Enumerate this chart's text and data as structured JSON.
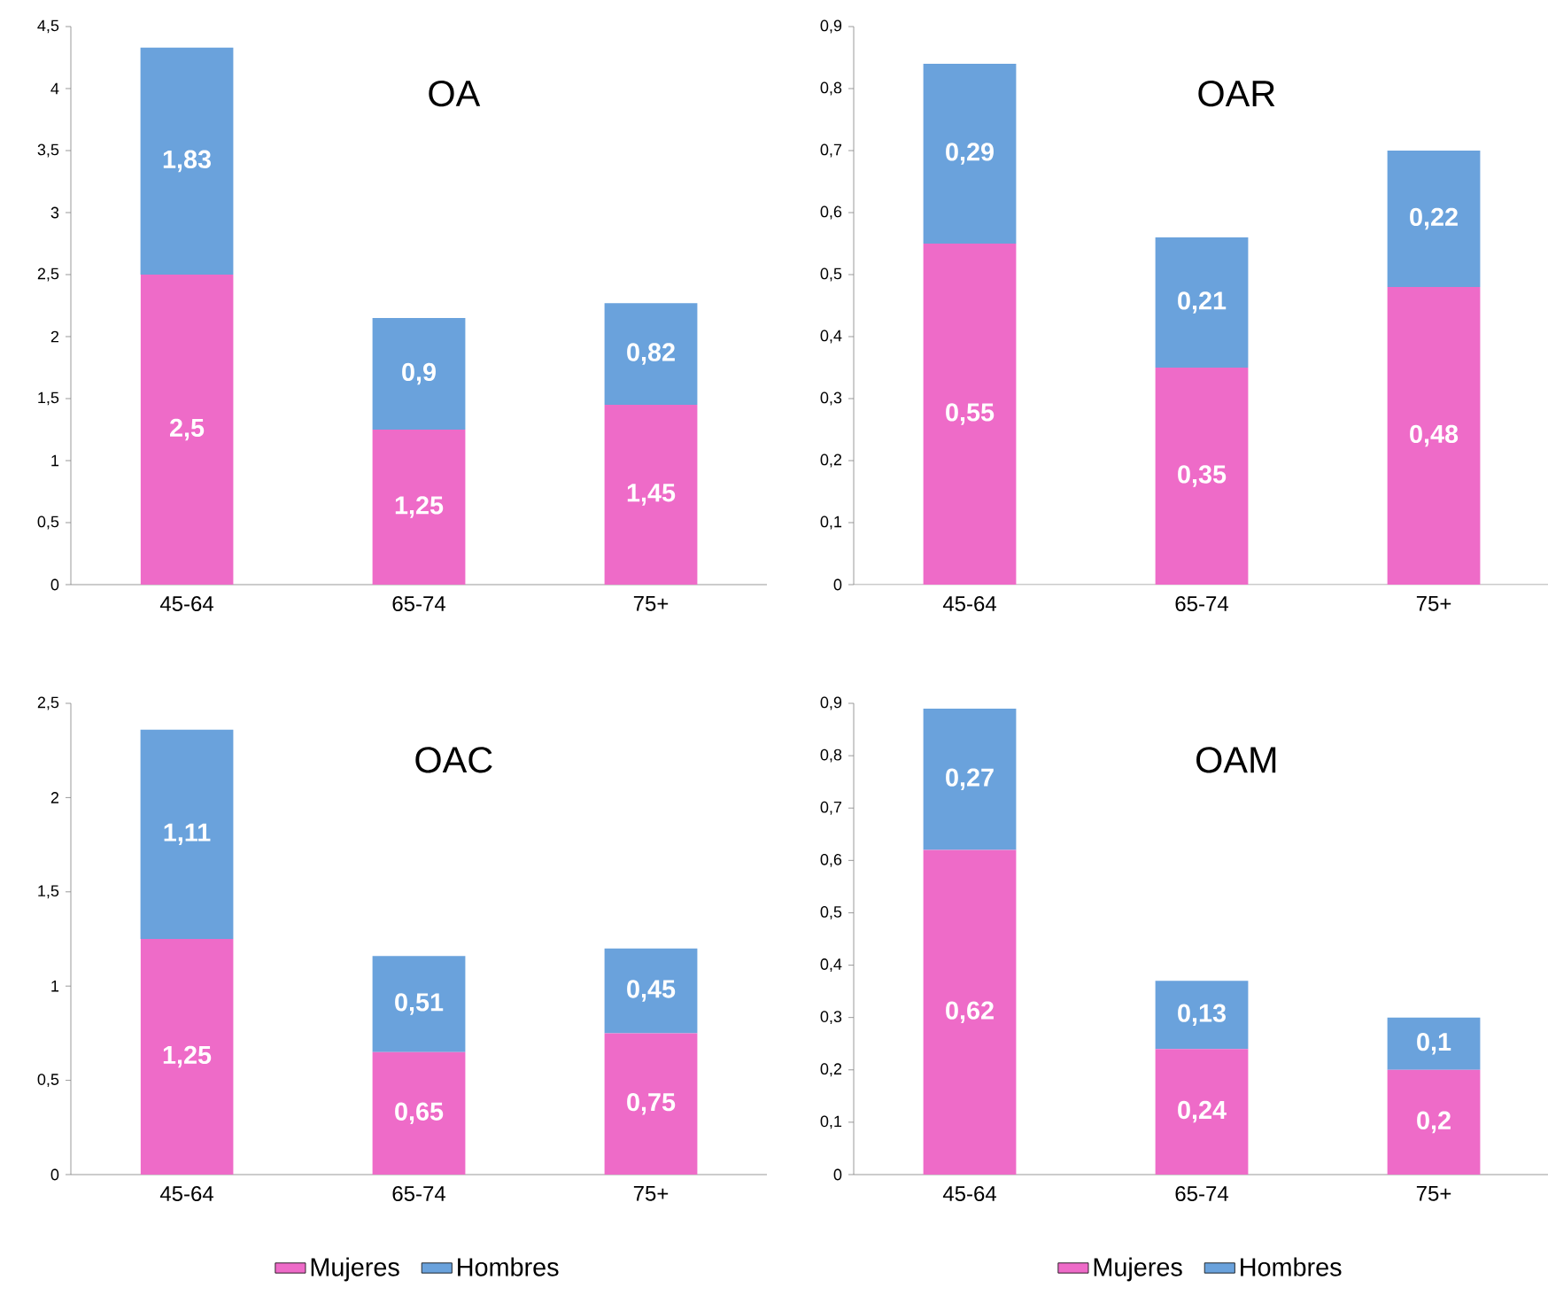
{
  "chart_data": [
    {
      "type": "bar",
      "stacked": true,
      "title": "OA",
      "categories": [
        "45-64",
        "65-74",
        "75+"
      ],
      "legend": false,
      "series": [
        {
          "color": "#ee6bc8",
          "values": [
            2.5,
            1.25,
            1.45
          ],
          "value_labels": [
            "2,5",
            "1,25",
            "1,45"
          ]
        },
        {
          "color": "#6aa2dc",
          "values": [
            1.83,
            0.9,
            0.82
          ],
          "value_labels": [
            "1,83",
            "0,9",
            "0,82"
          ]
        }
      ],
      "ylim": [
        0,
        4.5
      ],
      "yticks": [
        0,
        {
          "value": 0.5,
          "label": "0,5"
        },
        1,
        {
          "value": 1.5,
          "label": "1,5"
        },
        2,
        {
          "value": 2.5,
          "label": "2,5"
        },
        3,
        {
          "value": 3.5,
          "label": "3,5"
        },
        4,
        {
          "value": 4.5,
          "label": "4,5"
        }
      ]
    },
    {
      "type": "bar",
      "stacked": true,
      "title": "OAR",
      "categories": [
        "45-64",
        "65-74",
        "75+"
      ],
      "legend": false,
      "series": [
        {
          "color": "#ee6bc8",
          "values": [
            0.55,
            0.35,
            0.48
          ],
          "value_labels": [
            "0,55",
            "0,35",
            "0,48"
          ]
        },
        {
          "color": "#6aa2dc",
          "values": [
            0.29,
            0.21,
            0.22
          ],
          "value_labels": [
            "0,29",
            "0,21",
            "0,22"
          ]
        }
      ],
      "ylim": [
        0,
        0.9
      ],
      "yticks": [
        0,
        {
          "value": 0.1,
          "label": "0,1"
        },
        {
          "value": 0.2,
          "label": "0,2"
        },
        {
          "value": 0.3,
          "label": "0,3"
        },
        {
          "value": 0.4,
          "label": "0,4"
        },
        {
          "value": 0.5,
          "label": "0,5"
        },
        {
          "value": 0.6,
          "label": "0,6"
        },
        {
          "value": 0.7,
          "label": "0,7"
        },
        {
          "value": 0.8,
          "label": "0,8"
        },
        {
          "value": 0.9,
          "label": "0,9"
        }
      ]
    },
    {
      "type": "bar",
      "stacked": true,
      "title": "OAC",
      "categories": [
        "45-64",
        "65-74",
        "75+"
      ],
      "legend": "bottom",
      "series": [
        {
          "name": "Mujeres",
          "color": "#ee6bc8",
          "values": [
            1.25,
            0.65,
            0.75
          ],
          "value_labels": [
            "1,25",
            "0,65",
            "0,75"
          ]
        },
        {
          "name": "Hombres",
          "color": "#6aa2dc",
          "values": [
            1.11,
            0.51,
            0.45
          ],
          "value_labels": [
            "1,11",
            "0,51",
            "0,45"
          ]
        }
      ],
      "ylim": [
        0,
        2.5
      ],
      "yticks": [
        0,
        {
          "value": 0.5,
          "label": "0,5"
        },
        1,
        {
          "value": 1.5,
          "label": "1,5"
        },
        2,
        {
          "value": 2.5,
          "label": "2,5"
        }
      ]
    },
    {
      "type": "bar",
      "stacked": true,
      "title": "OAM",
      "categories": [
        "45-64",
        "65-74",
        "75+"
      ],
      "legend": "bottom",
      "series": [
        {
          "name": "Mujeres",
          "color": "#ee6bc8",
          "values": [
            0.62,
            0.24,
            0.2
          ],
          "value_labels": [
            "0,62",
            "0,24",
            "0,2"
          ]
        },
        {
          "name": "Hombres",
          "color": "#6aa2dc",
          "values": [
            0.27,
            0.13,
            0.1
          ],
          "value_labels": [
            "0,27",
            "0,13",
            "0,1"
          ]
        }
      ],
      "ylim": [
        0,
        0.9
      ],
      "yticks": [
        0,
        {
          "value": 0.1,
          "label": "0,1"
        },
        {
          "value": 0.2,
          "label": "0,2"
        },
        {
          "value": 0.3,
          "label": "0,3"
        },
        {
          "value": 0.4,
          "label": "0,4"
        },
        {
          "value": 0.5,
          "label": "0,5"
        },
        {
          "value": 0.6,
          "label": "0,6"
        },
        {
          "value": 0.7,
          "label": "0,7"
        },
        {
          "value": 0.8,
          "label": "0,8"
        },
        {
          "value": 0.9,
          "label": "0,9"
        }
      ]
    }
  ]
}
